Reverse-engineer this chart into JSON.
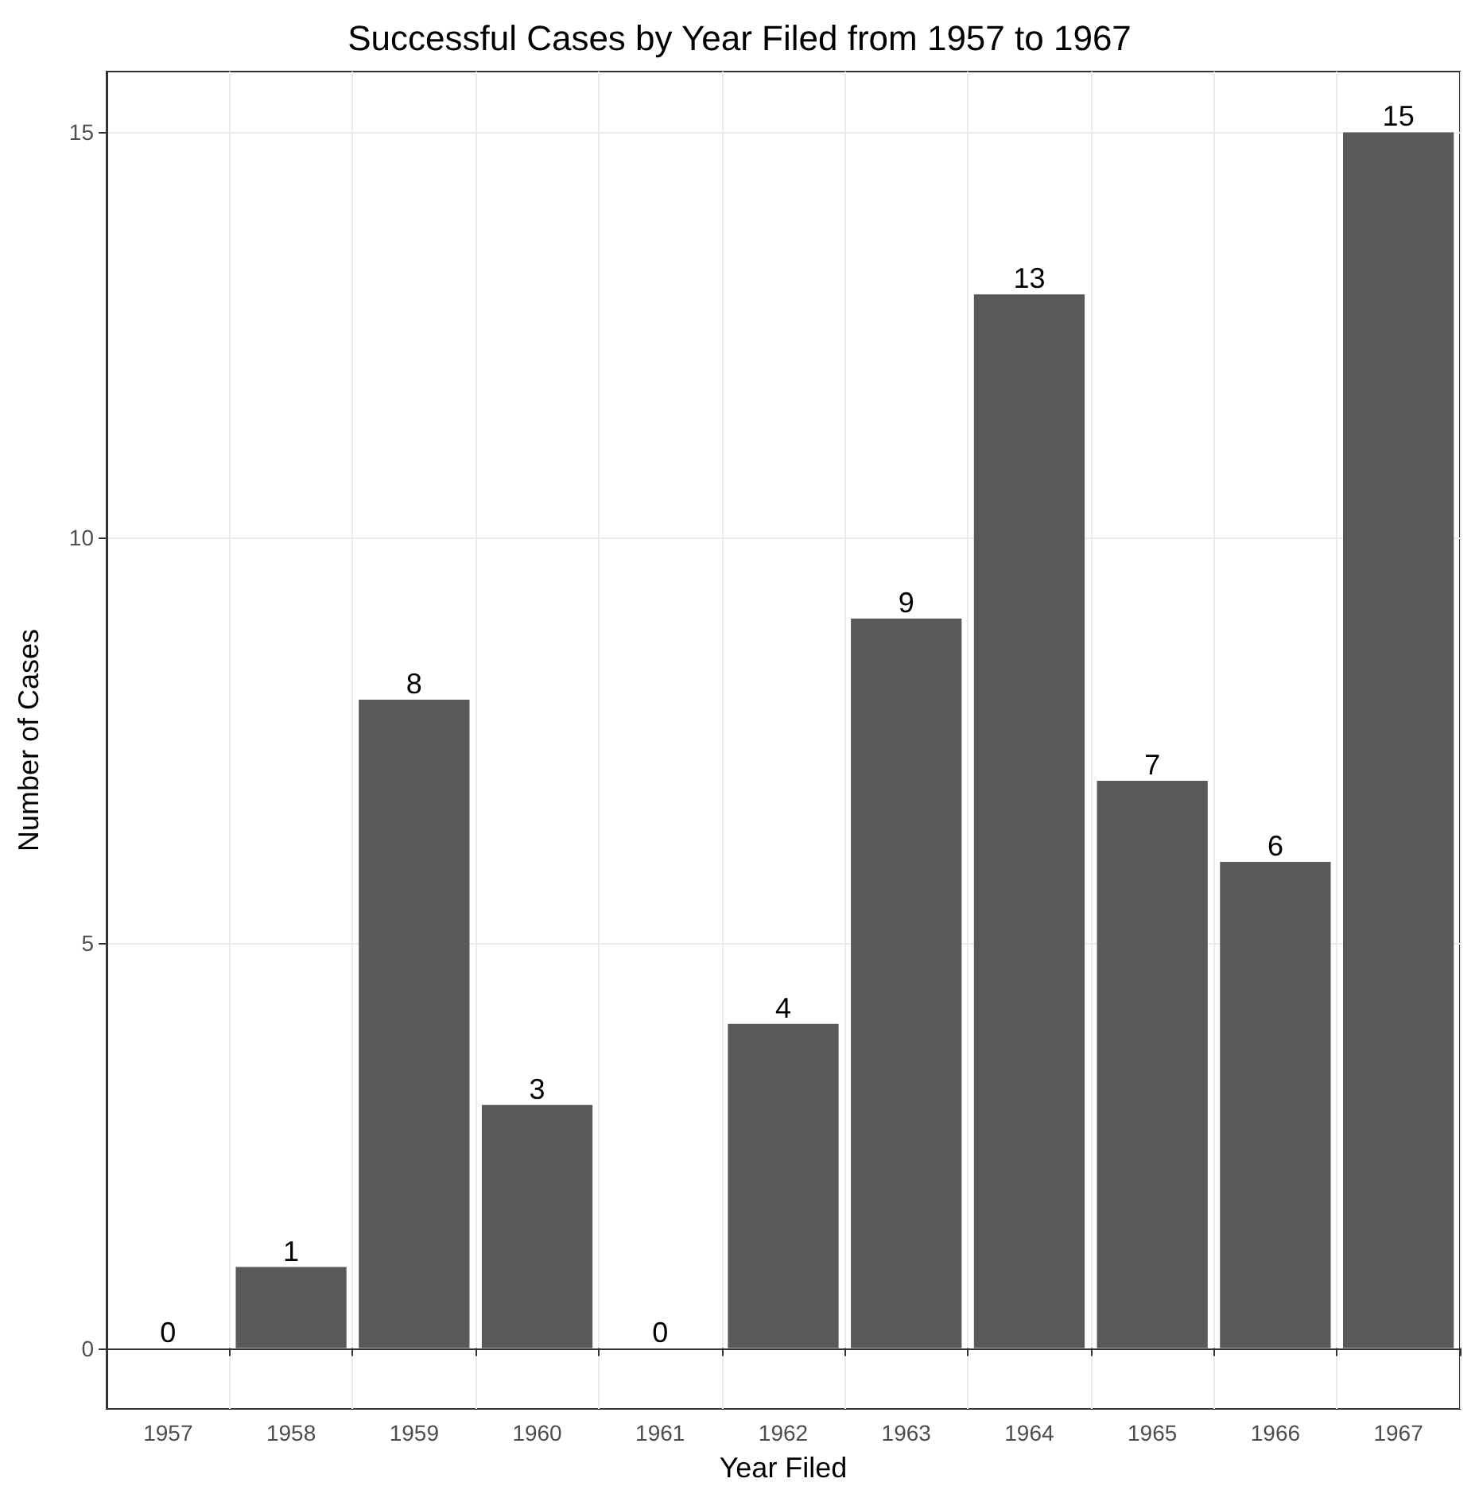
{
  "chart_data": {
    "type": "bar",
    "title": "Successful Cases by Year Filed from 1957 to 1967",
    "xlabel": "Year Filed",
    "ylabel": "Number of Cases",
    "categories": [
      "1957",
      "1958",
      "1959",
      "1960",
      "1961",
      "1962",
      "1963",
      "1964",
      "1965",
      "1966",
      "1967"
    ],
    "values": [
      0,
      1,
      8,
      3,
      0,
      4,
      9,
      13,
      7,
      6,
      15
    ],
    "color": "#595959",
    "ylim": [
      -0.75,
      15.75
    ],
    "yticks": [
      0,
      5,
      10,
      15
    ],
    "grid": true,
    "data_labels": true
  }
}
